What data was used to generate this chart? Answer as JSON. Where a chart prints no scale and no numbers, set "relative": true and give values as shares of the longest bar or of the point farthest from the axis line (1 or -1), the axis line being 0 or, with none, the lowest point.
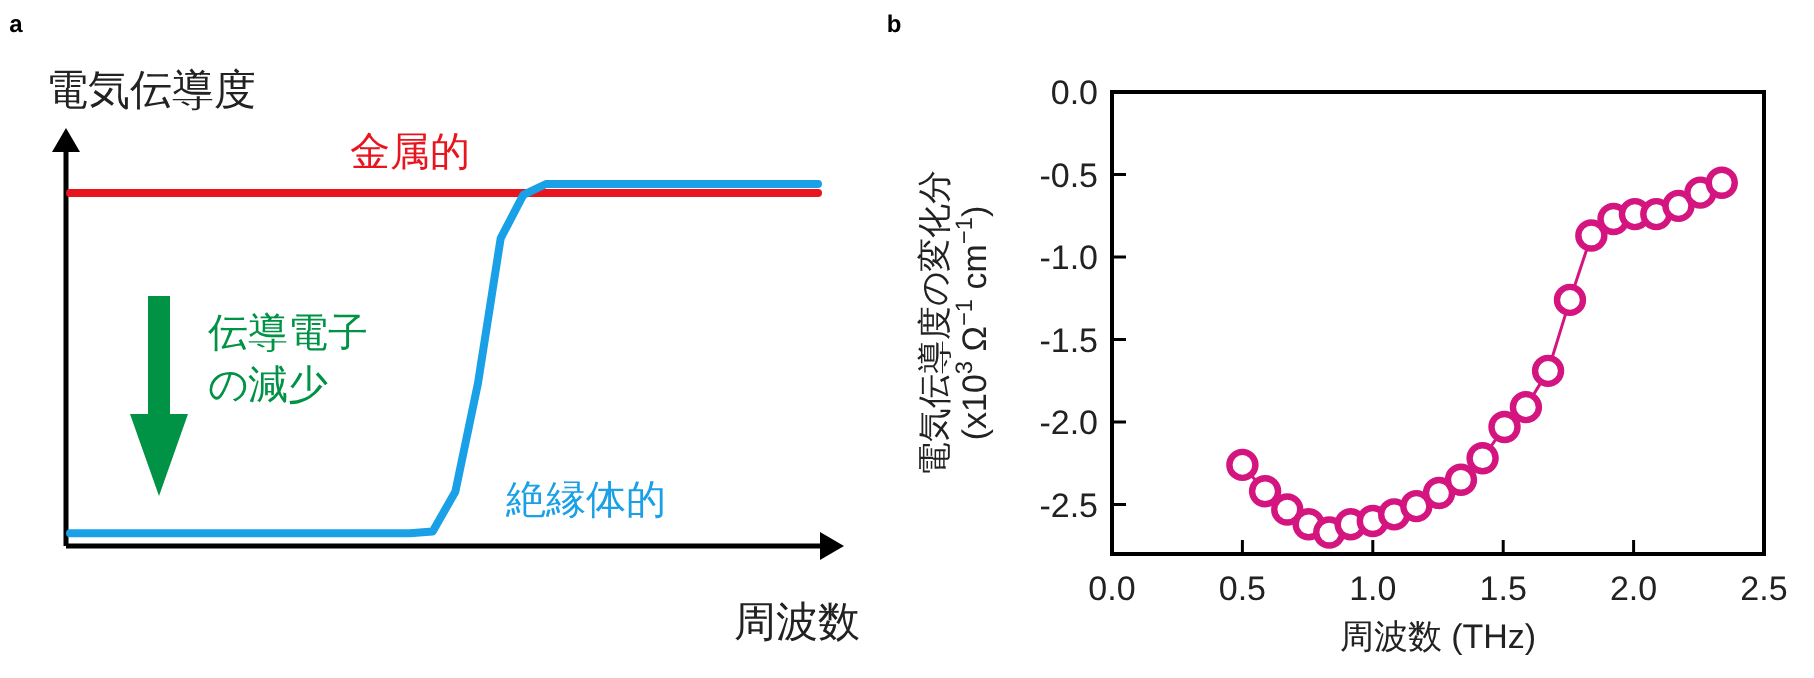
{
  "chart_data": [
    {
      "type": "line",
      "title": "a",
      "xlabel": "周波数",
      "ylabel": "電気伝導度",
      "relative": true,
      "grid": false,
      "marker": "none",
      "line_style": "solid",
      "categories": [
        null,
        null,
        null,
        null,
        null,
        null,
        null,
        null,
        null,
        null,
        null,
        null,
        null,
        null,
        null,
        null,
        null,
        null,
        null,
        null,
        null,
        null,
        null,
        null,
        null,
        null,
        null,
        null,
        null,
        null,
        null,
        null,
        null,
        null
      ],
      "series": [
        {
          "name": "金属的",
          "color": "#e8141e",
          "values": [
            0.975,
            0.975,
            0.975,
            0.975,
            0.975,
            0.975,
            0.975,
            0.975,
            0.975,
            0.975,
            0.975,
            0.975,
            0.975,
            0.975,
            0.975,
            0.975,
            0.975,
            0.975,
            0.975,
            0.975,
            0.975,
            0.975,
            0.975,
            0.975,
            0.975,
            0.975,
            0.975,
            0.975,
            0.975,
            0.975,
            0.975,
            0.975,
            0.975,
            0.975
          ]
        },
        {
          "name": "絶縁体的",
          "color": "#1aa0e6",
          "values": [
            0.035,
            0.035,
            0.035,
            0.035,
            0.035,
            0.035,
            0.035,
            0.035,
            0.035,
            0.035,
            0.035,
            0.035,
            0.035,
            0.035,
            0.035,
            0.035,
            0.04,
            0.15,
            0.45,
            0.85,
            0.97,
            1,
            1,
            1,
            1,
            1,
            1,
            1,
            1,
            1,
            1,
            1,
            1,
            1
          ]
        }
      ],
      "annotations": [
        "伝導電子の減少"
      ]
    },
    {
      "type": "line",
      "title": "b",
      "xlabel": "周波数 (THz)",
      "ylabel": "電気伝導度の変化分 (x10$^{3}$ Ω$^{−1}$ cm$^{−1}$)",
      "grid": false,
      "marker": "circle",
      "line_style": "solid",
      "xlim": [
        0,
        2.5
      ],
      "ylim": [
        -2.8,
        0
      ],
      "xticks": [
        {
          "value": 0,
          "label": "0.0"
        },
        0.5,
        {
          "value": 1,
          "label": "1.0"
        },
        1.5,
        {
          "value": 2,
          "label": "2.0"
        },
        2.5
      ],
      "yticks": [
        {
          "value": 0,
          "label": "0.0"
        },
        -0.5,
        {
          "value": -1,
          "label": "-1.0"
        },
        -1.5,
        {
          "value": -2,
          "label": "-2.0"
        },
        -2.5
      ],
      "series": [
        {
          "color": "#d4157f",
          "x": [
            0.5,
            0.587,
            0.672,
            0.754,
            0.833,
            0.915,
            1.0,
            1.082,
            1.167,
            1.254,
            1.338,
            1.421,
            1.505,
            1.587,
            1.672,
            1.756,
            1.838,
            1.923,
            2.005,
            2.087,
            2.172,
            2.256,
            2.338
          ],
          "values": [
            -2.26,
            -2.42,
            -2.53,
            -2.62,
            -2.67,
            -2.62,
            -2.6,
            -2.56,
            -2.51,
            -2.43,
            -2.35,
            -2.22,
            -2.03,
            -1.91,
            -1.69,
            -1.26,
            -0.87,
            -0.77,
            -0.74,
            -0.74,
            -0.69,
            -0.61,
            -0.55
          ]
        }
      ]
    }
  ]
}
